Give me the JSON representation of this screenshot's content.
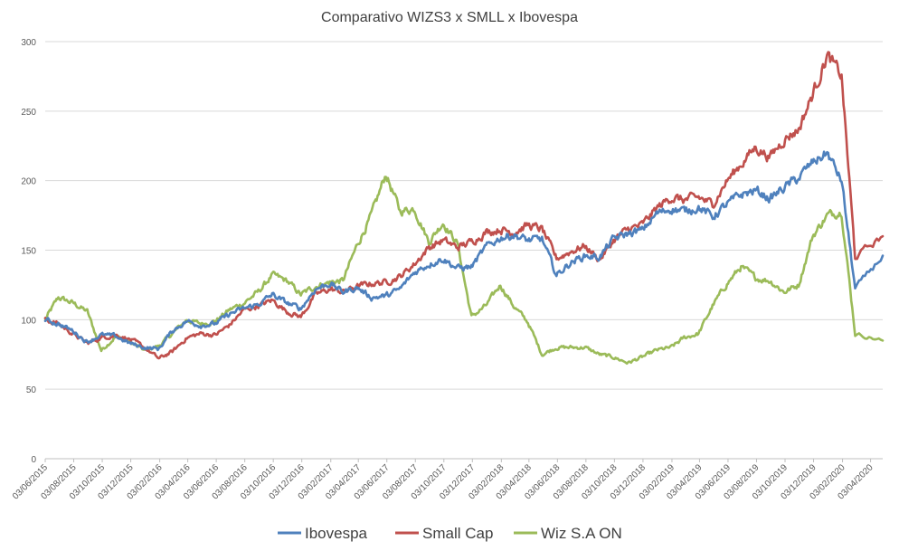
{
  "chart_data": {
    "type": "line",
    "title": "Comparativo WIZS3 x SMLL x Ibovespa",
    "xlabel": "",
    "ylabel": "",
    "ylim": [
      0,
      300
    ],
    "yticks": [
      0,
      50,
      100,
      150,
      200,
      250,
      300
    ],
    "grid": true,
    "legend_position": "bottom",
    "x_start": "03/06/2015",
    "x_end": "29/04/2020",
    "xtick_labels": [
      "03/06/2015",
      "03/08/2015",
      "03/10/2015",
      "03/12/2015",
      "03/02/2016",
      "03/04/2016",
      "03/06/2016",
      "03/08/2016",
      "03/10/2016",
      "03/12/2016",
      "03/02/2017",
      "03/04/2017",
      "03/06/2017",
      "03/08/2017",
      "03/10/2017",
      "03/12/2017",
      "03/02/2018",
      "03/04/2018",
      "03/06/2018",
      "03/08/2018",
      "03/10/2018",
      "03/12/2018",
      "03/02/2019",
      "03/04/2019",
      "03/06/2019",
      "03/08/2019",
      "03/10/2019",
      "03/12/2019",
      "03/02/2020",
      "03/04/2020"
    ],
    "x": [
      "2015-06",
      "2015-07",
      "2015-08",
      "2015-09",
      "2015-10",
      "2015-11",
      "2015-12",
      "2016-01",
      "2016-02",
      "2016-03",
      "2016-04",
      "2016-05",
      "2016-06",
      "2016-07",
      "2016-08",
      "2016-09",
      "2016-10",
      "2016-11",
      "2016-12",
      "2017-01",
      "2017-02",
      "2017-03",
      "2017-04",
      "2017-05",
      "2017-06",
      "2017-07",
      "2017-08",
      "2017-09",
      "2017-10",
      "2017-11",
      "2017-12",
      "2018-01",
      "2018-02",
      "2018-03",
      "2018-04",
      "2018-05",
      "2018-06",
      "2018-07",
      "2018-08",
      "2018-09",
      "2018-10",
      "2018-11",
      "2018-12",
      "2019-01",
      "2019-02",
      "2019-03",
      "2019-04",
      "2019-05",
      "2019-06",
      "2019-07",
      "2019-08",
      "2019-09",
      "2019-10",
      "2019-11",
      "2019-12",
      "2020-01",
      "2020-02",
      "2020-03",
      "2020-04"
    ],
    "series": [
      {
        "name": "Ibovespa",
        "color": "#4f81bd",
        "values": [
          100,
          97,
          92,
          84,
          89,
          88,
          83,
          80,
          79,
          92,
          99,
          96,
          97,
          104,
          108,
          111,
          118,
          112,
          108,
          122,
          126,
          120,
          123,
          116,
          117,
          122,
          134,
          140,
          144,
          137,
          138,
          152,
          159,
          161,
          157,
          158,
          132,
          141,
          146,
          145,
          158,
          162,
          164,
          176,
          180,
          178,
          181,
          174,
          183,
          190,
          193,
          187,
          195,
          202,
          213,
          220,
          200,
          122,
          146
        ]
      },
      {
        "name": "Small Cap",
        "color": "#c0504d",
        "values": [
          100,
          97,
          90,
          83,
          87,
          89,
          86,
          80,
          72,
          77,
          87,
          90,
          89,
          96,
          107,
          110,
          114,
          106,
          102,
          118,
          122,
          120,
          124,
          126,
          127,
          131,
          140,
          152,
          157,
          152,
          156,
          163,
          165,
          163,
          168,
          165,
          144,
          149,
          153,
          143,
          157,
          165,
          168,
          180,
          188,
          186,
          188,
          183,
          200,
          212,
          224,
          217,
          230,
          237,
          262,
          290,
          275,
          145,
          160
        ]
      },
      {
        "name": "Wiz S.A ON",
        "color": "#9bbb59",
        "values": [
          100,
          116,
          112,
          106,
          78,
          88,
          84,
          78,
          81,
          90,
          100,
          97,
          99,
          107,
          112,
          120,
          132,
          128,
          118,
          124,
          127,
          128,
          154,
          175,
          205,
          178,
          180,
          156,
          170,
          155,
          102,
          110,
          125,
          110,
          98,
          75,
          80,
          80,
          80,
          75,
          73,
          69,
          73,
          78,
          80,
          87,
          90,
          110,
          126,
          138,
          130,
          128,
          120,
          125,
          160,
          175,
          178,
          90,
          85
        ]
      }
    ]
  }
}
